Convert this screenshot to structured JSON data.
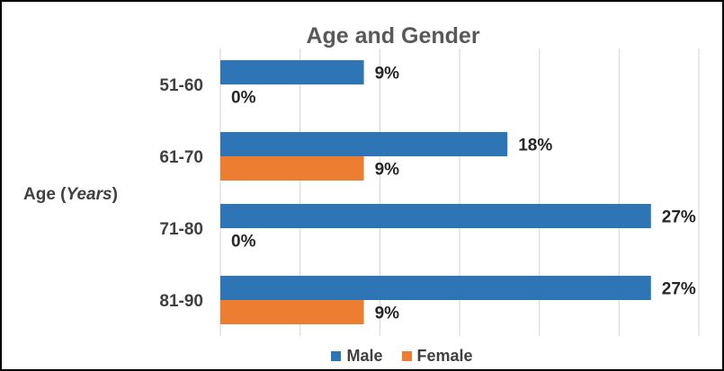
{
  "chart_data": {
    "type": "bar",
    "orientation": "horizontal",
    "title": "Age and Gender",
    "ylabel_prefix": "Age (",
    "ylabel_italic": "Years",
    "ylabel_suffix": ")",
    "xlabel": "",
    "categories": [
      "51-60",
      "61-70",
      "71-80",
      "81-90"
    ],
    "series": [
      {
        "name": "Male",
        "color": "#2E75B6",
        "values": [
          9,
          18,
          27,
          27
        ],
        "labels": [
          "9%",
          "18%",
          "27%",
          "27%"
        ]
      },
      {
        "name": "Female",
        "color": "#ED7D31",
        "values": [
          0,
          9,
          0,
          9
        ],
        "labels": [
          "0%",
          "9%",
          "0%",
          "9%"
        ]
      }
    ],
    "xlim": [
      0,
      30
    ],
    "grid": true,
    "legend_position": "bottom"
  }
}
